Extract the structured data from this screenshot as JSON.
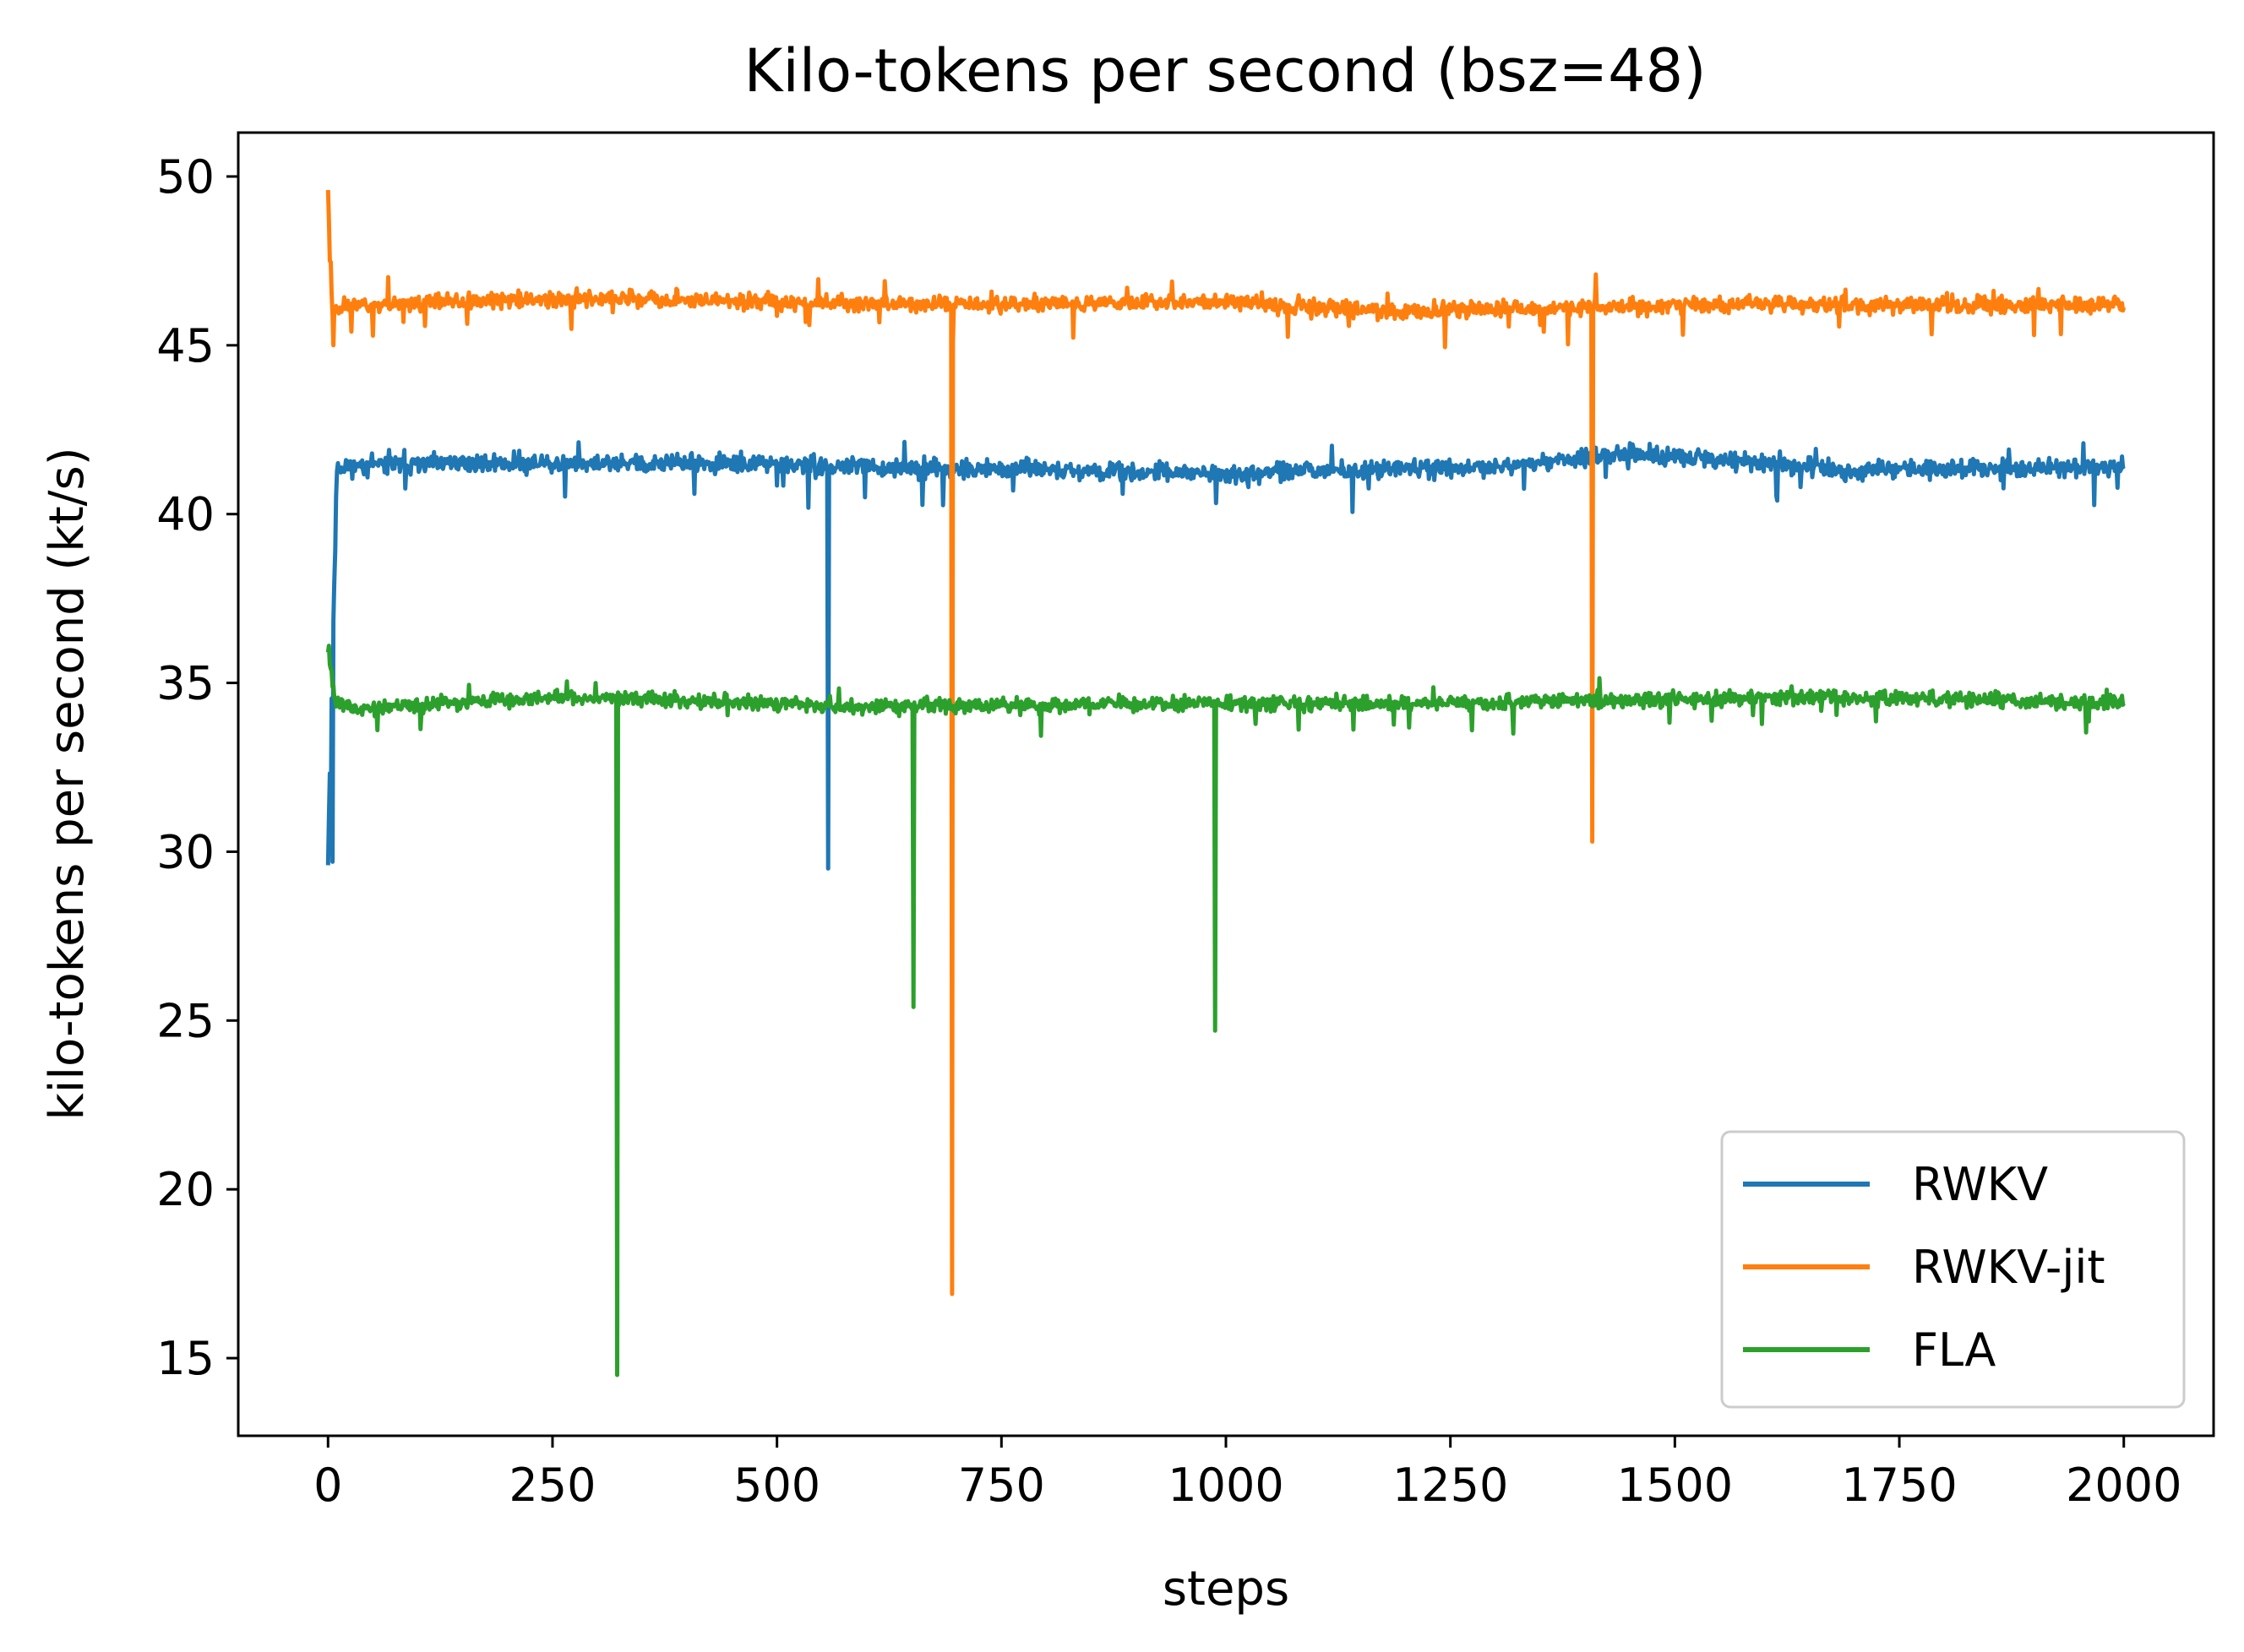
{
  "chart_data": {
    "type": "line",
    "title": "Kilo-tokens per second (bsz=48)",
    "xlabel": "steps",
    "ylabel": "kilo-tokens per second (kt/s)",
    "xlim": [
      -100,
      2100
    ],
    "ylim": [
      12.7,
      51.3
    ],
    "x_ticks": [
      0,
      250,
      500,
      750,
      1000,
      1250,
      1500,
      1750,
      2000
    ],
    "y_ticks": [
      15,
      20,
      25,
      30,
      35,
      40,
      45,
      50
    ],
    "grid": false,
    "legend_position": "lower-right",
    "series": [
      {
        "name": "RWKV",
        "color": "#1f77b4",
        "baseline": [
          [
            0,
            30.0
          ],
          [
            10,
            41.4
          ],
          [
            150,
            41.5
          ],
          [
            400,
            41.5
          ],
          [
            800,
            41.3
          ],
          [
            1000,
            41.2
          ],
          [
            1300,
            41.4
          ],
          [
            1450,
            41.8
          ],
          [
            1700,
            41.3
          ],
          [
            2000,
            41.4
          ]
        ],
        "noise": 0.25,
        "seed": 11,
        "spikes": [
          [
            0,
            29.6
          ],
          [
            3,
            30.7
          ],
          [
            5,
            29.7
          ],
          [
            557,
            29.5
          ],
          [
            85,
            41.9
          ],
          [
            408,
            40.6
          ],
          [
            885,
            40.6
          ],
          [
            1025,
            40.8
          ],
          [
            1450,
            42.1
          ],
          [
            1640,
            40.8
          ],
          [
            1955,
            42.1
          ]
        ]
      },
      {
        "name": "RWKV-jit",
        "color": "#ff7f0e",
        "baseline": [
          [
            0,
            49.5
          ],
          [
            5,
            46.0
          ],
          [
            20,
            46.2
          ],
          [
            300,
            46.4
          ],
          [
            700,
            46.2
          ],
          [
            1000,
            46.3
          ],
          [
            1200,
            46.0
          ],
          [
            1500,
            46.2
          ],
          [
            2000,
            46.2
          ]
        ],
        "noise": 0.22,
        "seed": 23,
        "spikes": [
          [
            0,
            49.6
          ],
          [
            2,
            47.5
          ],
          [
            6,
            45.0
          ],
          [
            695,
            16.9
          ],
          [
            1408,
            30.3
          ],
          [
            1412,
            47.1
          ],
          [
            620,
            46.9
          ],
          [
            1900,
            45.3
          ]
        ]
      },
      {
        "name": "FLA",
        "color": "#2ca02c",
        "baseline": [
          [
            0,
            36.0
          ],
          [
            8,
            34.5
          ],
          [
            30,
            34.2
          ],
          [
            250,
            34.6
          ],
          [
            600,
            34.3
          ],
          [
            1000,
            34.4
          ],
          [
            1250,
            34.4
          ],
          [
            1650,
            34.6
          ],
          [
            2000,
            34.4
          ]
        ],
        "noise": 0.2,
        "seed": 37,
        "spikes": [
          [
            1,
            36.1
          ],
          [
            322,
            14.5
          ],
          [
            652,
            25.4
          ],
          [
            988,
            24.7
          ],
          [
            1320,
            33.5
          ],
          [
            1630,
            34.9
          ],
          [
            55,
            33.6
          ]
        ]
      }
    ]
  }
}
